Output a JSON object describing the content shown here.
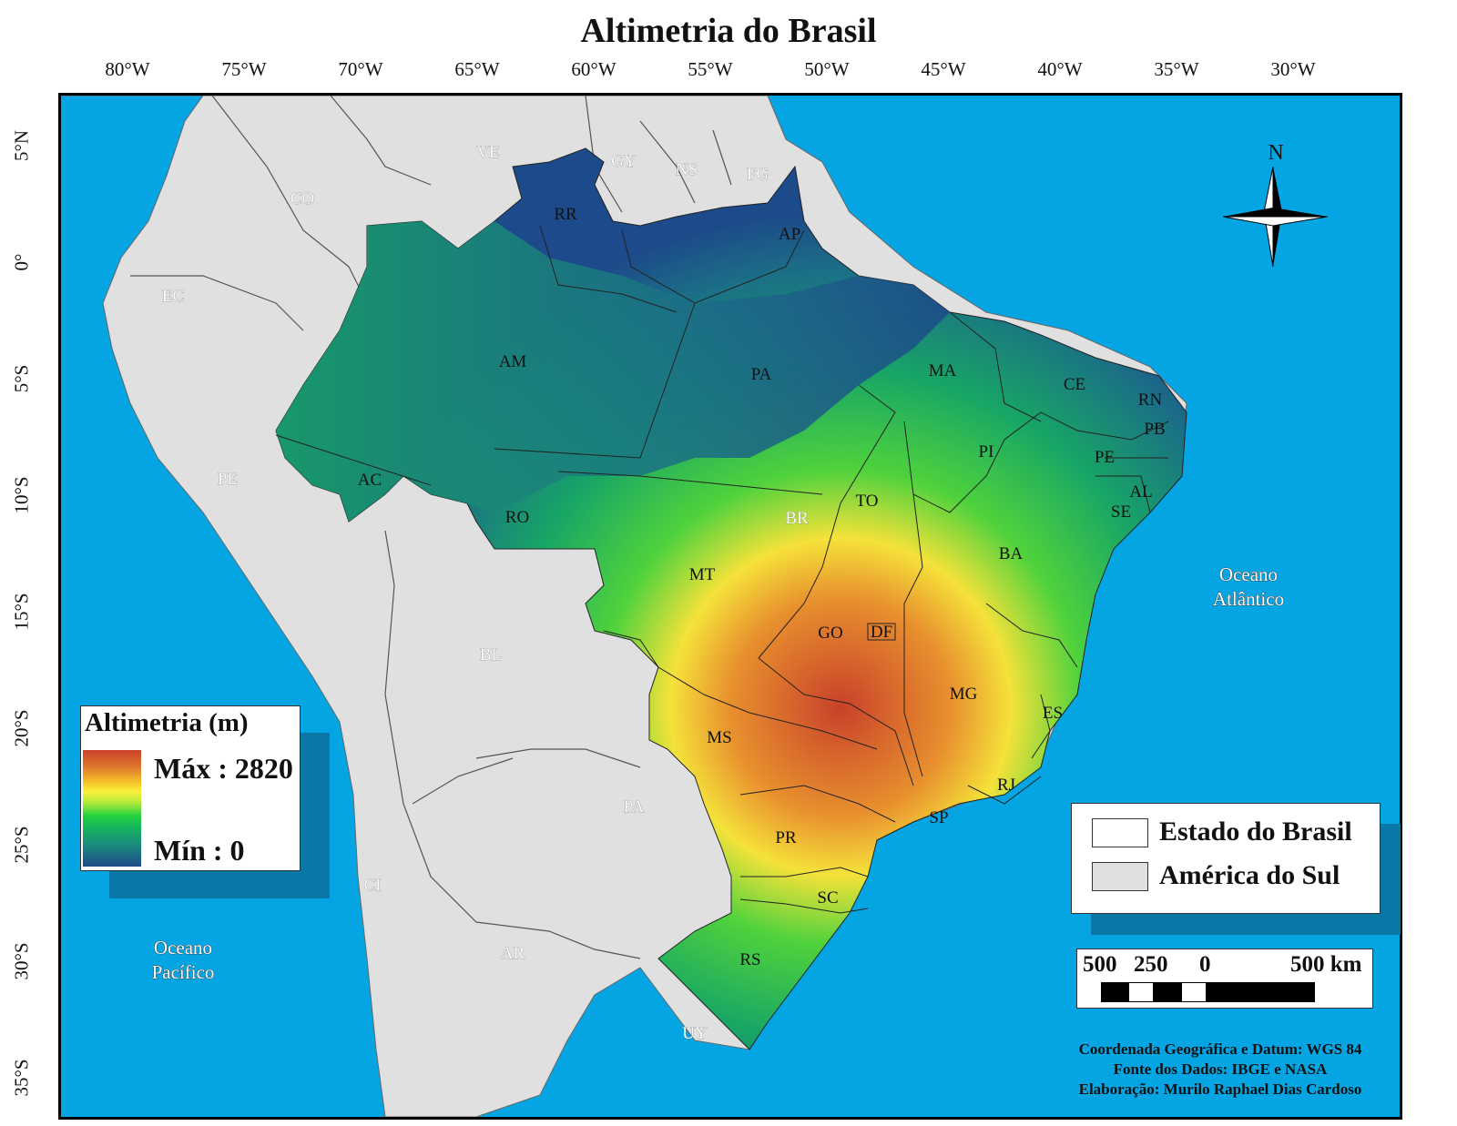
{
  "map": {
    "title": "Altimetria do Brasil",
    "graticule": {
      "longitudes": [
        "80°W",
        "75°W",
        "70°W",
        "65°W",
        "60°W",
        "55°W",
        "50°W",
        "45°W",
        "40°W",
        "35°W",
        "30°W"
      ],
      "latitudes": [
        "5°N",
        "0°",
        "5°S",
        "10°S",
        "15°S",
        "20°S",
        "25°S",
        "30°S",
        "35°S"
      ]
    },
    "north_arrow": "N",
    "colors": {
      "ocean": "#05a5e3",
      "south_america": "#e0e0e0",
      "elevation_low": "#1d4a8a",
      "elevation_mid": "#27d33d",
      "elevation_high": "#c8412a"
    },
    "states": [
      "AM",
      "PA",
      "MT",
      "BA",
      "MG",
      "MS",
      "GO",
      "DF",
      "TO",
      "MA",
      "PI",
      "CE",
      "RN",
      "PB",
      "PE",
      "AL",
      "SE",
      "ES",
      "RJ",
      "SP",
      "PR",
      "SC",
      "RS",
      "RO",
      "AC",
      "RR",
      "AP",
      "BR"
    ],
    "countries": [
      "VE",
      "GY",
      "NS",
      "FG",
      "CO",
      "EC",
      "PE",
      "BL",
      "PA",
      "CI",
      "AR",
      "UY"
    ],
    "oceans": {
      "atlantic": [
        "Oceano",
        "Atlântico"
      ],
      "pacific": [
        "Oceano",
        "Pacífico"
      ]
    }
  },
  "legend": {
    "title": "Altimetria (m)",
    "max_label": "Máx : 2820",
    "min_label": "Mín : 0"
  },
  "boundaries_legend": {
    "states_label": "Estado do Brasil",
    "south_america_label": "América do Sul"
  },
  "scale_bar": {
    "labels": [
      "500",
      "250",
      "0",
      "500 km"
    ]
  },
  "credits": {
    "datum": "Coordenada Geográfica e Datum: WGS 84",
    "source": "Fonte dos Dados: IBGE e NASA",
    "author": "Elaboração: Murilo Raphael Dias Cardoso"
  }
}
